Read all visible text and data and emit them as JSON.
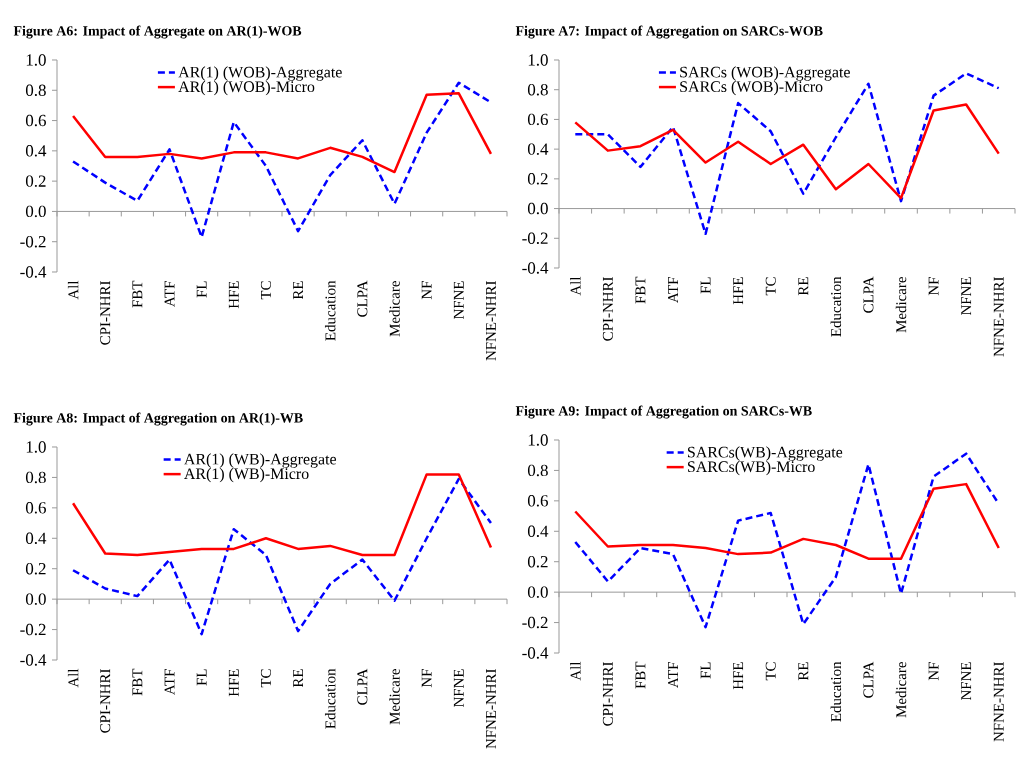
{
  "chart_data": [
    {
      "type": "line",
      "title": "Figure  A6: Impact of Aggregate on AR(1)-WOB",
      "categories": [
        "All",
        "CPI-NHRI",
        "FBT",
        "ATF",
        "FL",
        "HFE",
        "TC",
        "RE",
        "Education",
        "CLPA",
        "Medicare",
        "NF",
        "NFNE",
        "NFNE-NHRI"
      ],
      "series": [
        {
          "name": "AR(1) (WOB)-Aggregate",
          "color": "#0000ff",
          "line_style": "dashed",
          "values": [
            0.33,
            0.19,
            0.07,
            0.41,
            -0.17,
            0.59,
            0.3,
            -0.13,
            0.24,
            0.47,
            0.05,
            0.52,
            0.85,
            0.72
          ]
        },
        {
          "name": "AR(1) (WOB)-Micro",
          "color": "#ff0000",
          "line_style": "solid",
          "values": [
            0.63,
            0.36,
            0.36,
            0.38,
            0.35,
            0.39,
            0.39,
            0.35,
            0.42,
            0.36,
            0.26,
            0.77,
            0.78,
            0.38
          ]
        }
      ],
      "ylim": [
        -0.4,
        1.0
      ],
      "yticks": [
        {
          "value": -0.4,
          "label": "-0.4"
        },
        {
          "value": -0.2,
          "label": "-0.2"
        },
        {
          "value": 0,
          "label": "0.0"
        },
        0.2,
        0.4,
        0.6,
        0.8,
        {
          "value": 1,
          "label": "1.0"
        }
      ],
      "legend": "top"
    },
    {
      "type": "line",
      "title": "Figure  A7: Impact of  Aggregation on SARCs-WOB",
      "categories": [
        "All",
        "CPI-NHRI",
        "FBT",
        "ATF",
        "FL",
        "HFE",
        "TC",
        "RE",
        "Education",
        "CLPA",
        "Medicare",
        "NF",
        "NFNE",
        "NFNE-NHRI"
      ],
      "series": [
        {
          "name": "SARCs (WOB)-Aggregate",
          "color": "#0000ff",
          "line_style": "dashed",
          "values": [
            0.5,
            0.5,
            0.28,
            0.55,
            -0.17,
            0.71,
            0.52,
            0.1,
            0.48,
            0.84,
            0.05,
            0.76,
            0.91,
            0.81
          ]
        },
        {
          "name": "SARCs (WOB)-Micro",
          "color": "#ff0000",
          "line_style": "solid",
          "values": [
            0.58,
            0.39,
            0.42,
            0.53,
            0.31,
            0.45,
            0.3,
            0.43,
            0.13,
            0.3,
            0.07,
            0.66,
            0.7,
            0.37
          ]
        }
      ],
      "ylim": [
        -0.4,
        1.0
      ],
      "yticks": [
        {
          "value": -0.4,
          "label": "-0.4"
        },
        {
          "value": -0.2,
          "label": "-0.2"
        },
        {
          "value": 0,
          "label": "0.0"
        },
        0.2,
        0.4,
        0.6,
        0.8,
        {
          "value": 1,
          "label": "1.0"
        }
      ],
      "legend": "top"
    },
    {
      "type": "line",
      "title": "Figure  A8: Impact of Aggregation on AR(1)-WB",
      "categories": [
        "All",
        "CPI-NHRI",
        "FBT",
        "ATF",
        "FL",
        "HFE",
        "TC",
        "RE",
        "Education",
        "CLPA",
        "Medicare",
        "NF",
        "NFNE",
        "NFNE-NHRI"
      ],
      "series": [
        {
          "name": "AR(1) (WB)-Aggregate",
          "color": "#0000ff",
          "line_style": "dashed",
          "values": [
            0.19,
            0.07,
            0.02,
            0.26,
            -0.23,
            0.46,
            0.29,
            -0.21,
            0.1,
            0.26,
            -0.01,
            0.4,
            0.79,
            0.5
          ]
        },
        {
          "name": "AR(1) (WB)-Micro",
          "color": "#ff0000",
          "line_style": "solid",
          "values": [
            0.63,
            0.3,
            0.29,
            0.31,
            0.33,
            0.33,
            0.4,
            0.33,
            0.35,
            0.29,
            0.29,
            0.82,
            0.82,
            0.34
          ]
        }
      ],
      "ylim": [
        -0.4,
        1.0
      ],
      "yticks": [
        {
          "value": -0.4,
          "label": "-0.4"
        },
        {
          "value": -0.2,
          "label": "-0.2"
        },
        {
          "value": 0,
          "label": "0.0"
        },
        0.2,
        0.4,
        0.6,
        0.8,
        {
          "value": 1,
          "label": "1.0"
        }
      ],
      "legend": "top"
    },
    {
      "type": "line",
      "title": "Figure  A9: Impact of Aggregation on SARCs-WB",
      "categories": [
        "All",
        "CPI-NHRI",
        "FBT",
        "ATF",
        "FL",
        "HFE",
        "TC",
        "RE",
        "Education",
        "CLPA",
        "Medicare",
        "NF",
        "NFNE",
        "NFNE-NHRI"
      ],
      "series": [
        {
          "name": "SARCs(WB)-Aggregate",
          "color": "#0000ff",
          "line_style": "dashed",
          "values": [
            0.33,
            0.07,
            0.29,
            0.25,
            -0.23,
            0.47,
            0.52,
            -0.21,
            0.1,
            0.84,
            -0.01,
            0.76,
            0.91,
            0.58
          ]
        },
        {
          "name": "SARCs(WB)-Micro",
          "color": "#ff0000",
          "line_style": "solid",
          "values": [
            0.53,
            0.3,
            0.31,
            0.31,
            0.29,
            0.25,
            0.26,
            0.35,
            0.31,
            0.22,
            0.22,
            0.68,
            0.71,
            0.29
          ]
        }
      ],
      "ylim": [
        -0.4,
        1.0
      ],
      "yticks": [
        {
          "value": -0.4,
          "label": "-0.4"
        },
        {
          "value": -0.2,
          "label": "-0.2"
        },
        {
          "value": 0,
          "label": "0.0"
        },
        0.2,
        0.4,
        0.6,
        0.8,
        {
          "value": 1,
          "label": "1.0"
        }
      ],
      "legend": "top"
    }
  ]
}
